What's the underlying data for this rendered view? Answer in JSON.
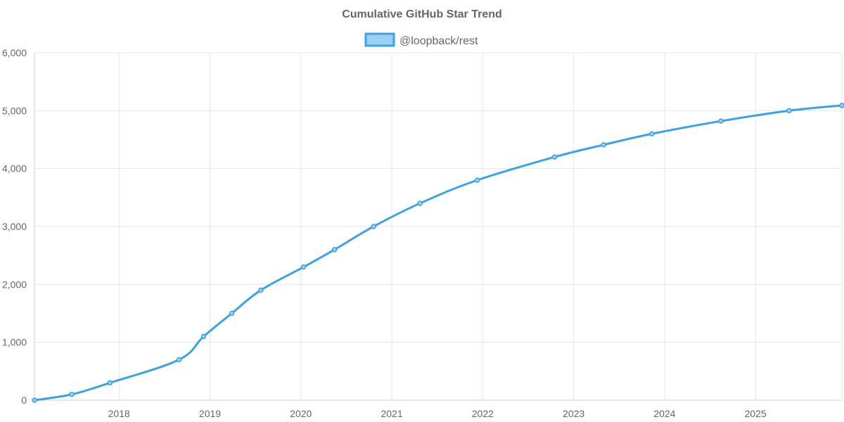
{
  "chart_data": {
    "type": "line",
    "title": "Cumulative GitHub Star Trend",
    "xlabel": "",
    "ylabel": "",
    "legend_position": "top-center",
    "grid": true,
    "xlim": [
      2017.07,
      2025.95
    ],
    "ylim": [
      0,
      6000
    ],
    "x_ticks": [
      "2018",
      "2019",
      "2020",
      "2021",
      "2022",
      "2023",
      "2024",
      "2025"
    ],
    "y_ticks": [
      "0",
      "1,000",
      "2,000",
      "3,000",
      "4,000",
      "5,000",
      "6,000"
    ],
    "series": [
      {
        "name": "@loopback/rest",
        "color": "#3fa1e0",
        "fill_color": "#9ad0f5",
        "x": [
          2017.07,
          2017.48,
          2017.9,
          2018.66,
          2018.93,
          2019.24,
          2019.56,
          2020.03,
          2020.37,
          2020.8,
          2021.31,
          2021.94,
          2022.79,
          2023.33,
          2023.86,
          2024.62,
          2025.37,
          2025.95
        ],
        "values": [
          0,
          100,
          300,
          700,
          1100,
          1500,
          1900,
          2300,
          2600,
          3000,
          3400,
          3800,
          4200,
          4410,
          4600,
          4820,
          5000,
          5090
        ]
      }
    ]
  }
}
